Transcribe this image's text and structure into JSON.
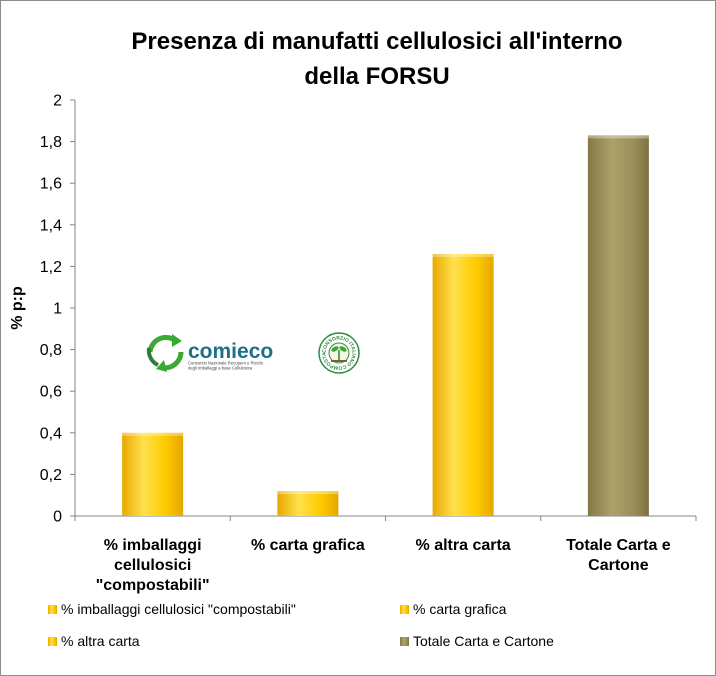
{
  "chart_data": {
    "type": "bar",
    "title_lines": [
      "Presenza di manufatti cellulosici all'interno",
      "della FORSU"
    ],
    "ylabel": "% p:p",
    "xlabel": "",
    "ylim": [
      0,
      2
    ],
    "yticks": [
      "0",
      "0,2",
      "0,4",
      "0,6",
      "0,8",
      "1",
      "1,2",
      "1,4",
      "1,6",
      "1,8",
      "2"
    ],
    "categories": [
      [
        "% imballaggi",
        "cellulosici",
        "\"compostabili\""
      ],
      [
        "% carta grafica"
      ],
      [
        "% altra carta"
      ],
      [
        "Totale Carta e",
        "Cartone"
      ]
    ],
    "series": [
      {
        "name": "% imballaggi cellulosici \"compostabili\"",
        "color": "#FFCC00",
        "values": [
          0.4,
          null,
          null,
          null
        ]
      },
      {
        "name": "% carta grafica",
        "color": "#FFCC00",
        "values": [
          null,
          0.12,
          null,
          null
        ]
      },
      {
        "name": "% altra carta",
        "color": "#FFCC00",
        "values": [
          null,
          null,
          1.26,
          null
        ]
      },
      {
        "name": "Totale Carta e Cartone",
        "color": "#9C8F5A",
        "values": [
          null,
          null,
          null,
          1.83
        ]
      }
    ],
    "grid": false,
    "legend_position": "bottom"
  },
  "logos": {
    "comieco": {
      "name": "comieco",
      "tagline_1": "Consorzio Nazionale Recupero e Riciclo",
      "tagline_2": "degli Imballaggi a base Cellulosica"
    },
    "cic": {
      "ring_text": "CONSORZIO ITALIANO COMPOSTATORI"
    }
  },
  "colors": {
    "yellow_bar": "#FFCC00",
    "khaki_bar": "#9C8F5A",
    "frame": "#8c8c8c"
  },
  "icons": {
    "comieco_logo": "recycle-arrows-icon",
    "cic_logo": "compost-seal-icon"
  }
}
